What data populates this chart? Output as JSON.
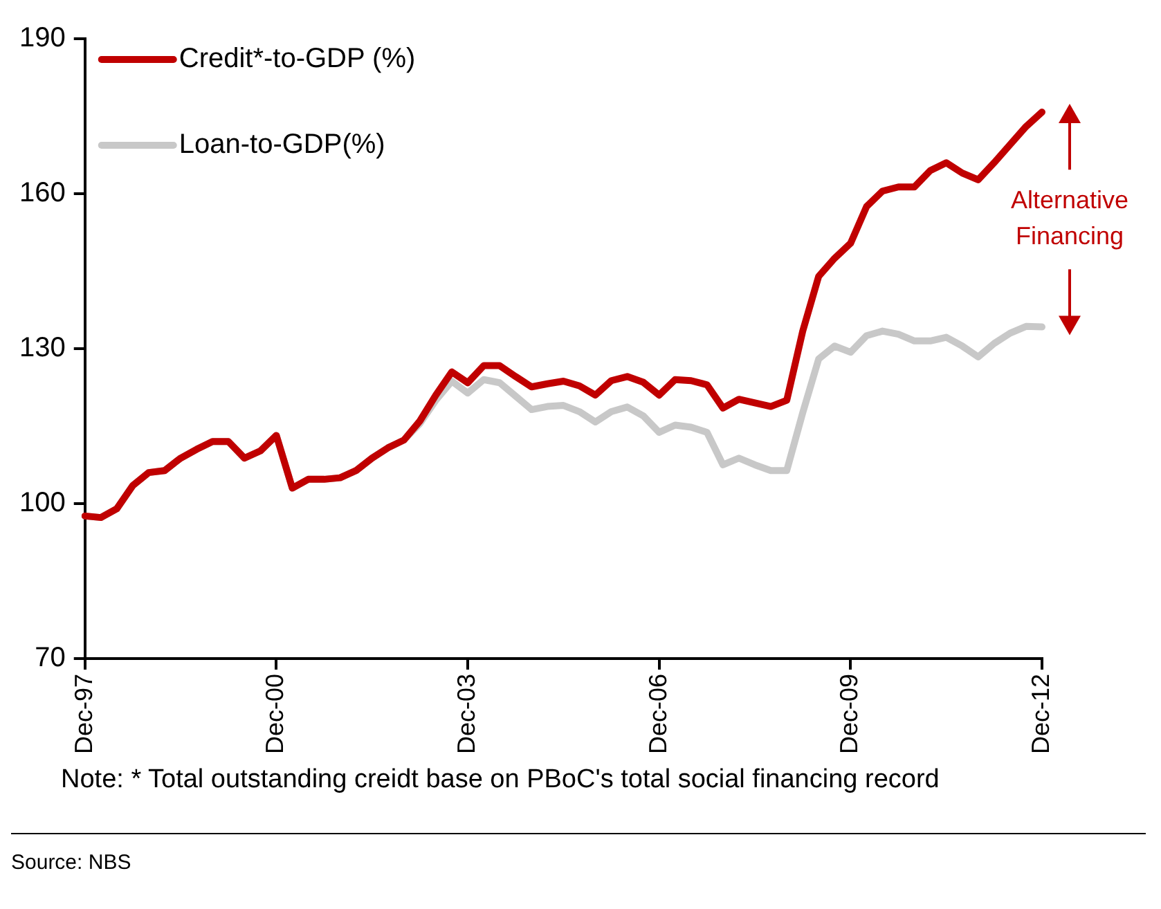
{
  "chart_data": {
    "type": "line",
    "categories": [
      "Dec-97",
      null,
      null,
      null,
      null,
      null,
      null,
      null,
      null,
      null,
      null,
      null,
      "Dec-00",
      null,
      null,
      null,
      null,
      null,
      null,
      null,
      null,
      null,
      null,
      null,
      "Dec-03",
      null,
      null,
      null,
      null,
      null,
      null,
      null,
      null,
      null,
      null,
      null,
      "Dec-06",
      null,
      null,
      null,
      null,
      null,
      null,
      null,
      null,
      null,
      null,
      null,
      "Dec-09",
      null,
      null,
      null,
      null,
      null,
      null,
      null,
      null,
      null,
      null,
      null,
      "Dec-12"
    ],
    "series": [
      {
        "name": "Credit*-to-GDP (%)",
        "color": "#c00000",
        "values": [
          97.6,
          97.3,
          99,
          103.5,
          106,
          106.4,
          108.8,
          110.5,
          112,
          112,
          108.8,
          110.2,
          113.2,
          103,
          104.7,
          104.7,
          105,
          106.4,
          108.8,
          110.8,
          112.3,
          116,
          121,
          125.5,
          123.4,
          126.7,
          126.7,
          124.6,
          122.6,
          123.2,
          123.7,
          122.8,
          121,
          123.8,
          124.6,
          123.5,
          121,
          124,
          123.8,
          123,
          118.5,
          120.2,
          119.5,
          118.8,
          120,
          133.4,
          144,
          147.5,
          150.4,
          157.5,
          160.5,
          161.3,
          161.3,
          164.5,
          166,
          164,
          162.7,
          166,
          169.5,
          173,
          175.8
        ]
      },
      {
        "name": "Loan-to-GDP(%)",
        "color": "#c8c8c8",
        "values": [
          97.6,
          97.3,
          99,
          103.5,
          106,
          106.4,
          108.8,
          110.5,
          112,
          112,
          108.8,
          110.2,
          113.2,
          103,
          104.7,
          104.7,
          105,
          106.4,
          108.8,
          110.8,
          112.3,
          115.5,
          120,
          123.7,
          121.4,
          124,
          123.4,
          120.8,
          118.2,
          118.8,
          119,
          117.8,
          115.8,
          117.8,
          118.7,
          117,
          113.8,
          115.2,
          114.8,
          113.8,
          107.5,
          108.8,
          107.5,
          106.4,
          106.4,
          117.6,
          128,
          130.5,
          129.3,
          132.5,
          133.4,
          132.8,
          131.5,
          131.5,
          132.2,
          130.5,
          128.4,
          131,
          133,
          134.3,
          134.2
        ]
      }
    ],
    "ylim": [
      70,
      190
    ],
    "yticks": [
      70,
      100,
      130,
      160,
      190
    ],
    "grid": false,
    "legend": "top left",
    "marker": "none",
    "line_style": "solid",
    "annotations": [
      "Alternative Financing",
      "Note: * Total outstanding creidt base on PBoC's total social financing record",
      "Source: NBS"
    ]
  }
}
